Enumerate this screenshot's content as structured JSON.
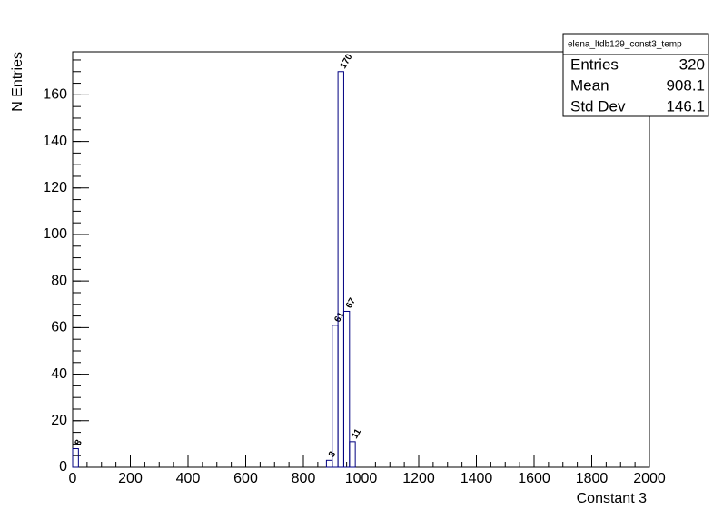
{
  "chart_data": {
    "type": "histogram",
    "stats_title": "elena_ltdb129_const3_temp",
    "stats": [
      {
        "label": "Entries",
        "value": "320"
      },
      {
        "label": "Mean",
        "value": "908.1"
      },
      {
        "label": "Std Dev",
        "value": "146.1"
      }
    ],
    "xlabel": "Constant 3",
    "ylabel": "N Entries",
    "bins": [
      0,
      20,
      40,
      60,
      80,
      100,
      120,
      140,
      160,
      180,
      200,
      220,
      240,
      260,
      280,
      300,
      320,
      340,
      360,
      380,
      400,
      420,
      440,
      460,
      480,
      500,
      520,
      540,
      560,
      580,
      600,
      620,
      640,
      660,
      680,
      700,
      720,
      740,
      760,
      780,
      800,
      820,
      840,
      860,
      880,
      900,
      920,
      940,
      960,
      980,
      1000,
      1020,
      1040,
      1060,
      1080,
      1100,
      1120,
      1140,
      1160,
      1180,
      1200,
      1220,
      1240,
      1260,
      1280,
      1300,
      1320,
      1340,
      1360,
      1380,
      1400,
      1420,
      1440,
      1460,
      1480,
      1500,
      1520,
      1540,
      1560,
      1580,
      1600,
      1620,
      1640,
      1660,
      1680,
      1700,
      1720,
      1740,
      1760,
      1780,
      1800,
      1820,
      1840,
      1860,
      1880,
      1900,
      1920,
      1940,
      1960,
      1980,
      2000
    ],
    "values": [
      8,
      0,
      0,
      0,
      0,
      0,
      0,
      0,
      0,
      0,
      0,
      0,
      0,
      0,
      0,
      0,
      0,
      0,
      0,
      0,
      0,
      0,
      0,
      0,
      0,
      0,
      0,
      0,
      0,
      0,
      0,
      0,
      0,
      0,
      0,
      0,
      0,
      0,
      0,
      0,
      0,
      0,
      0,
      0,
      3,
      61,
      170,
      67,
      11,
      0,
      0,
      0,
      0,
      0,
      0,
      0,
      0,
      0,
      0,
      0,
      0,
      0,
      0,
      0,
      0,
      0,
      0,
      0,
      0,
      0,
      0,
      0,
      0,
      0,
      0,
      0,
      0,
      0,
      0,
      0,
      0,
      0,
      0,
      0,
      0,
      0,
      0,
      0,
      0,
      0,
      0,
      0,
      0,
      0,
      0,
      0,
      0,
      0,
      0,
      0
    ],
    "color": "#000080",
    "xlim": [
      0,
      2000
    ],
    "xticks": [
      0,
      200,
      400,
      600,
      800,
      1000,
      1200,
      1400,
      1600,
      1800,
      2000
    ],
    "ylim": [
      0,
      178.5
    ],
    "yticks": [
      0,
      20,
      40,
      60,
      80,
      100,
      120,
      140,
      160
    ]
  }
}
